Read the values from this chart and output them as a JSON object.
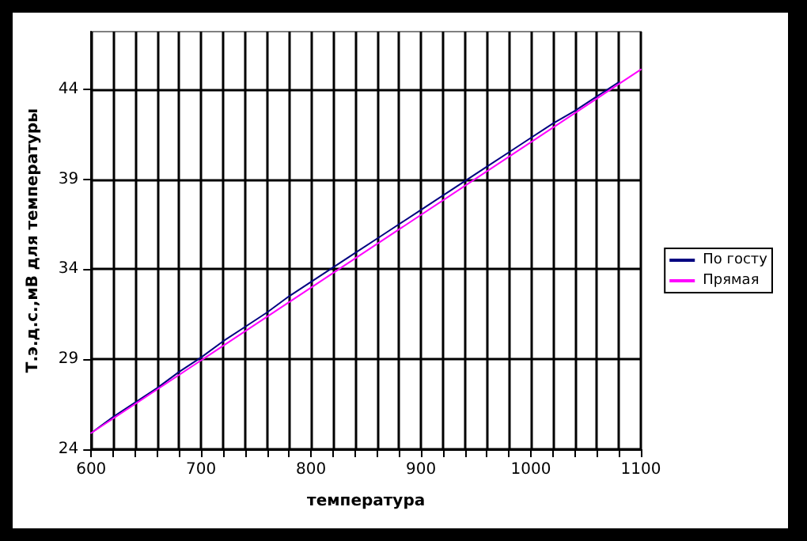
{
  "chart_data": {
    "type": "line",
    "xlabel": "температура",
    "ylabel": "Т.э.д.с.,мВ для температуры",
    "series": [
      {
        "name": "По госту",
        "color": "#000080",
        "x": [
          600,
          620,
          640,
          660,
          680,
          700,
          720,
          740,
          760,
          780,
          800,
          820,
          840,
          860,
          880,
          900,
          920,
          940,
          960,
          980,
          1000,
          1020,
          1040,
          1060,
          1080
        ],
        "values": [
          24.9,
          25.8,
          26.6,
          27.4,
          28.3,
          29.1,
          30.0,
          30.8,
          31.6,
          32.5,
          33.3,
          34.1,
          34.9,
          35.7,
          36.5,
          37.3,
          38.1,
          38.9,
          39.7,
          40.5,
          41.3,
          42.1,
          42.8,
          43.6,
          44.4
        ]
      },
      {
        "name": "Прямая",
        "color": "#ff00ff",
        "x": [
          600,
          1100
        ],
        "values": [
          24.9,
          45.1
        ]
      }
    ],
    "xlim": [
      600,
      1100
    ],
    "xticks": [
      600,
      {
        "value": 620,
        "label": null
      },
      {
        "value": 640,
        "label": null
      },
      {
        "value": 660,
        "label": null
      },
      {
        "value": 680,
        "label": null
      },
      700,
      {
        "value": 720,
        "label": null
      },
      {
        "value": 740,
        "label": null
      },
      {
        "value": 760,
        "label": null
      },
      {
        "value": 780,
        "label": null
      },
      800,
      {
        "value": 820,
        "label": null
      },
      {
        "value": 840,
        "label": null
      },
      {
        "value": 860,
        "label": null
      },
      {
        "value": 880,
        "label": null
      },
      900,
      {
        "value": 920,
        "label": null
      },
      {
        "value": 940,
        "label": null
      },
      {
        "value": 960,
        "label": null
      },
      {
        "value": 980,
        "label": null
      },
      1000,
      {
        "value": 1020,
        "label": null
      },
      {
        "value": 1040,
        "label": null
      },
      {
        "value": 1060,
        "label": null
      },
      {
        "value": 1080,
        "label": null
      },
      1100
    ],
    "ylim": [
      24,
      47.2
    ],
    "yticks": [
      24,
      29,
      34,
      39,
      44
    ],
    "grid": true,
    "legend": "right",
    "marker": "none",
    "line_style": "solid"
  }
}
